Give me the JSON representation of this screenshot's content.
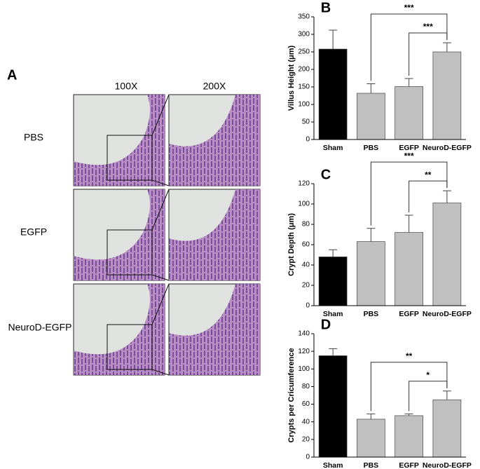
{
  "panel_a": {
    "label": "A",
    "columns": [
      "100X",
      "200X"
    ],
    "rows": [
      "PBS",
      "EGFP",
      "NeuroD-EGFP"
    ]
  },
  "chart_data": [
    {
      "type": "bar",
      "panel_label": "B",
      "y_label": "Villus Height (μm)",
      "categories": [
        "Sham",
        "PBS",
        "EGFP",
        "NeuroD-EGFP"
      ],
      "values": [
        258,
        132,
        151,
        250
      ],
      "errors": [
        54,
        27,
        23,
        26
      ],
      "colors": [
        "#000000",
        "#c0c0c0",
        "#c0c0c0",
        "#c0c0c0"
      ],
      "ylim": [
        0,
        350
      ],
      "yticks": [
        0,
        50,
        100,
        150,
        200,
        250,
        300,
        350
      ],
      "annotations": [
        {
          "label": "***",
          "between": [
            1,
            3
          ]
        },
        {
          "label": "***",
          "between": [
            2,
            3
          ]
        }
      ]
    },
    {
      "type": "bar",
      "panel_label": "C",
      "y_label": "Crypt Depth (μm)",
      "categories": [
        "Sham",
        "PBS",
        "EGFP",
        "NeuroD-EGFP"
      ],
      "values": [
        48,
        63,
        72,
        101
      ],
      "errors": [
        7,
        13,
        17,
        12
      ],
      "colors": [
        "#000000",
        "#c0c0c0",
        "#c0c0c0",
        "#c0c0c0"
      ],
      "ylim": [
        0,
        120
      ],
      "yticks": [
        0,
        20,
        40,
        60,
        80,
        100,
        120
      ],
      "annotations": [
        {
          "label": "***",
          "between": [
            1,
            3
          ]
        },
        {
          "label": "**",
          "between": [
            2,
            3
          ]
        }
      ]
    },
    {
      "type": "bar",
      "panel_label": "D",
      "y_label": "Crypts per Cricumference",
      "categories": [
        "Sham",
        "PBS",
        "EGFP",
        "NeuroD-EGFP"
      ],
      "values": [
        115,
        43,
        47,
        65
      ],
      "errors": [
        8,
        6,
        2,
        10
      ],
      "colors": [
        "#000000",
        "#c0c0c0",
        "#c0c0c0",
        "#c0c0c0"
      ],
      "ylim": [
        0,
        140
      ],
      "yticks": [
        0,
        20,
        40,
        60,
        80,
        100,
        120,
        140
      ],
      "annotations": [
        {
          "label": "**",
          "between": [
            1,
            3
          ]
        },
        {
          "label": "*",
          "between": [
            2,
            3
          ]
        }
      ]
    }
  ]
}
